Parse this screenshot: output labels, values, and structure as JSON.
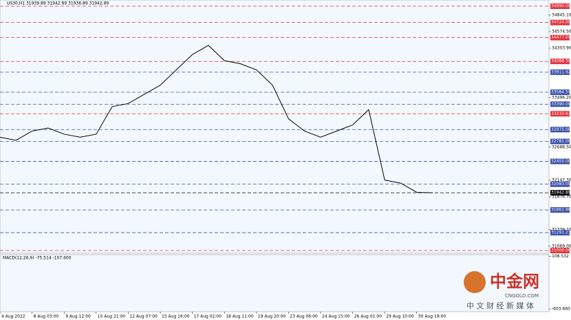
{
  "header": "US30,H1 31939.89 31942.89 31936.89 31942.89",
  "chart_data": {
    "type": "line",
    "categories": [
      "4 Aug 2022",
      null,
      "8 Aug 03:00",
      null,
      "9 Aug 12:00",
      null,
      "10 Aug 21:00",
      null,
      "12 Aug 07:00",
      null,
      "15 Aug 16:00",
      null,
      "17 Aug 02:00",
      null,
      "18 Aug 11:00",
      null,
      "19 Aug 20:00",
      null,
      "23 Aug 06:00",
      null,
      "24 Aug 15:00",
      null,
      "26 Aug 01:00",
      null,
      "29 Aug 10:00",
      null,
      "30 Aug 19:00",
      null
    ],
    "values": [
      32850,
      32800,
      32950,
      33000,
      32900,
      32850,
      32900,
      33350,
      33400,
      33550,
      33700,
      33950,
      34200,
      34350,
      34100,
      34050,
      33950,
      33700,
      33150,
      32950,
      32850,
      32950,
      33050,
      33300,
      32150,
      32100,
      31950,
      31942.89
    ],
    "color": "#000000",
    "ylim": [
      30955,
      35091
    ],
    "yticks": [
      {
        "value": 34845.1,
        "label": "34845.10"
      },
      {
        "value": 34574.5,
        "label": "34574.50"
      },
      {
        "value": 34303.9,
        "label": "34303.90"
      },
      {
        "value": 33496.2,
        "label": "33496.20"
      },
      {
        "value": 32688.5,
        "label": "32688.50"
      },
      {
        "value": 32147.3,
        "label": "32147.30"
      },
      {
        "value": 31876.7,
        "label": "31876.70"
      },
      {
        "value": 31339.1,
        "label": "31339.10"
      },
      {
        "value": 31069,
        "label": "31069.00"
      }
    ],
    "levels": [
      {
        "value": 34990,
        "label": "34990.00",
        "color": "#e0303a"
      },
      {
        "value": 34724,
        "label": "34724.00",
        "color": "#e0303a"
      },
      {
        "value": 34477,
        "label": "34477.00",
        "color": "#e0303a"
      },
      {
        "value": 34088.3,
        "label": "34088.30",
        "color": "#e0303a"
      },
      {
        "value": 33911.92,
        "label": "33911.92",
        "color": "#3a4fa8"
      },
      {
        "value": 33584.59,
        "label": "33584.59",
        "color": "#3a4fa8"
      },
      {
        "value": 33390,
        "label": "33390.00",
        "color": "#3a4fa8"
      },
      {
        "value": 33233.63,
        "label": "33233.63",
        "color": "#e0303a"
      },
      {
        "value": 32975,
        "label": "32975.00",
        "color": "#3a4fa8"
      },
      {
        "value": 32781,
        "label": "32781.00",
        "color": "#3a4fa8"
      },
      {
        "value": 32455,
        "label": "32455.00",
        "color": "#3a4fa8"
      },
      {
        "value": 32083,
        "label": "32083.00",
        "color": "#3a4fa8"
      },
      {
        "value": 31942.89,
        "label": "31942.89",
        "color": "#000000"
      },
      {
        "value": 31661.96,
        "label": "31661.96",
        "color": "#3a4fa8"
      },
      {
        "value": 31291.23,
        "label": "31291.23",
        "color": "#3a4fa8"
      },
      {
        "value": 31000,
        "label": "31000.00",
        "color": "#e0303a"
      }
    ],
    "macd": {
      "label": "MACD(12,26,9) -75.514 -107.600",
      "ylim": [
        -640,
        130
      ],
      "yticks": [
        {
          "value": 108.532,
          "label": "108.532"
        },
        {
          "value": -603.66,
          "label": "-603.660"
        }
      ]
    }
  },
  "watermark": {
    "name": "中金网",
    "site": "CNGOLD.COM",
    "slogan": "中 文 财 经 新 媒 体"
  }
}
